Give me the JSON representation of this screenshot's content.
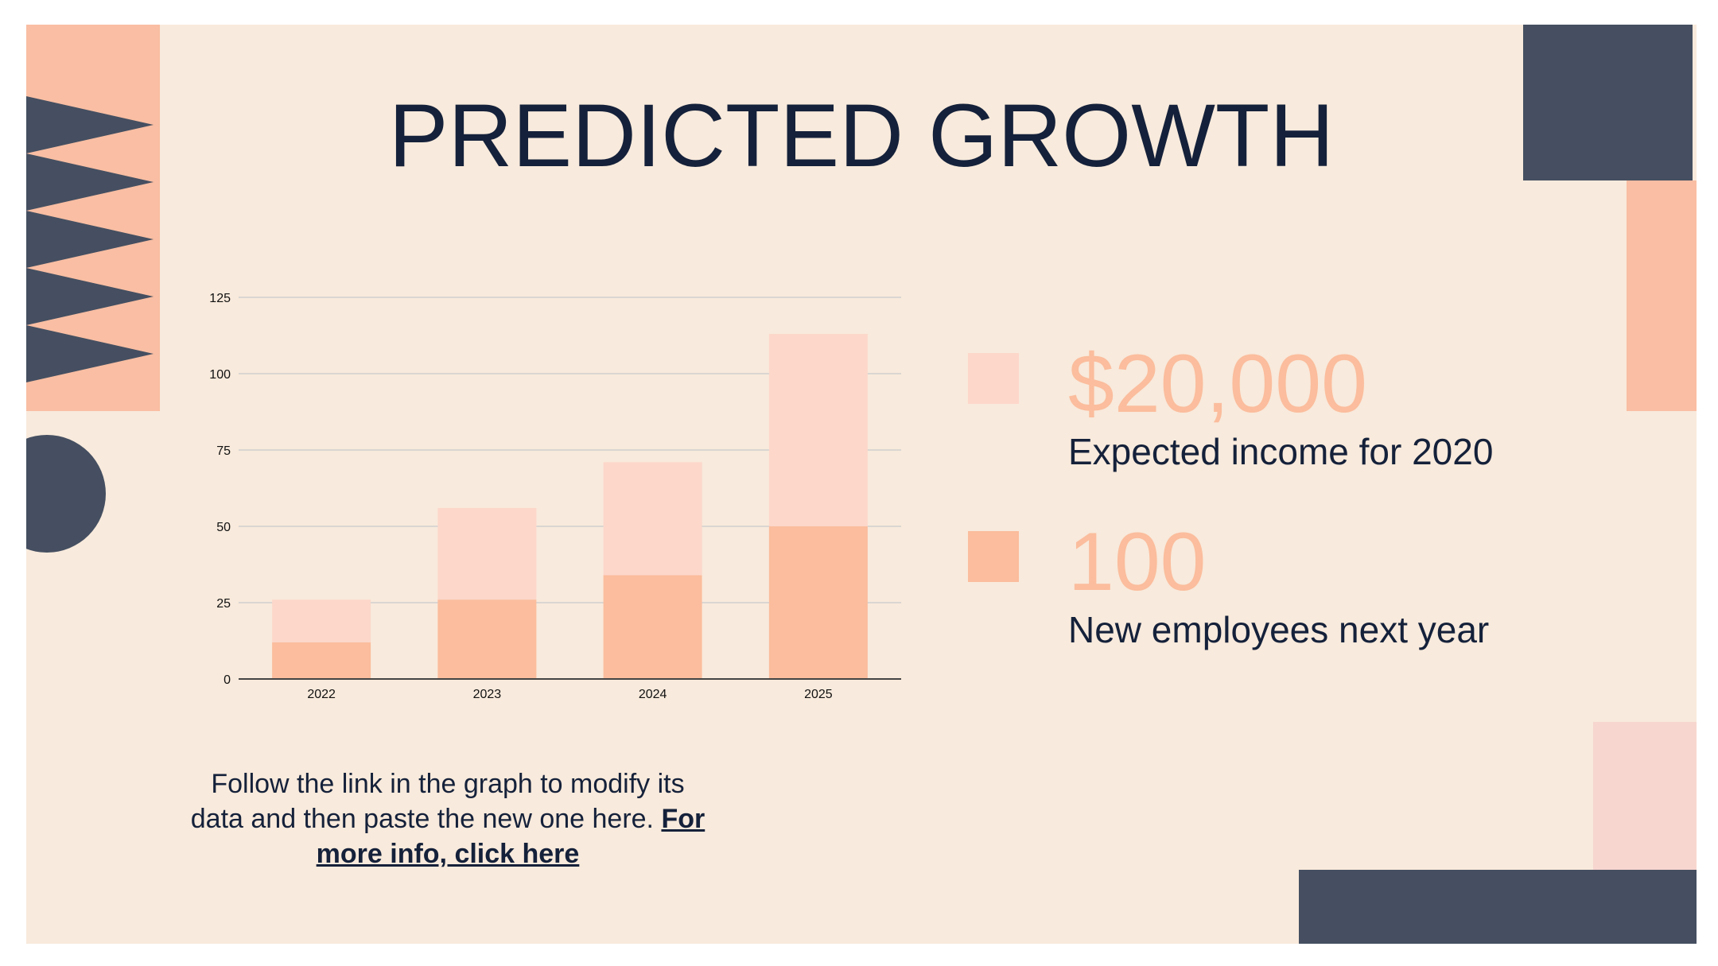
{
  "title": "PREDICTED GROWTH",
  "colors": {
    "background": "#f8eadc",
    "navy": "#15213a",
    "slate": "#454f61",
    "peach": "#fbbd9d",
    "light_pink": "#fcd7ca"
  },
  "chart_data": {
    "type": "bar",
    "stacked": true,
    "categories": [
      "2022",
      "2023",
      "2024",
      "2025"
    ],
    "series": [
      {
        "color": "#fbbd9d",
        "values": [
          12,
          26,
          34,
          50
        ]
      },
      {
        "color": "#fcd7ca",
        "values": [
          14,
          30,
          37,
          63
        ]
      }
    ],
    "ylim": [
      0,
      125
    ],
    "yticks": [
      0,
      25,
      50,
      75,
      100,
      125
    ],
    "grid": true,
    "title": "",
    "xlabel": "",
    "ylabel": ""
  },
  "stats": [
    {
      "value": "$20,000",
      "label": "Expected income for 2020"
    },
    {
      "value": "100",
      "label": "New employees next year"
    }
  ],
  "caption": {
    "text": "Follow the link in the graph to modify its data and then paste the new one here. ",
    "link": "For more info, click here"
  }
}
